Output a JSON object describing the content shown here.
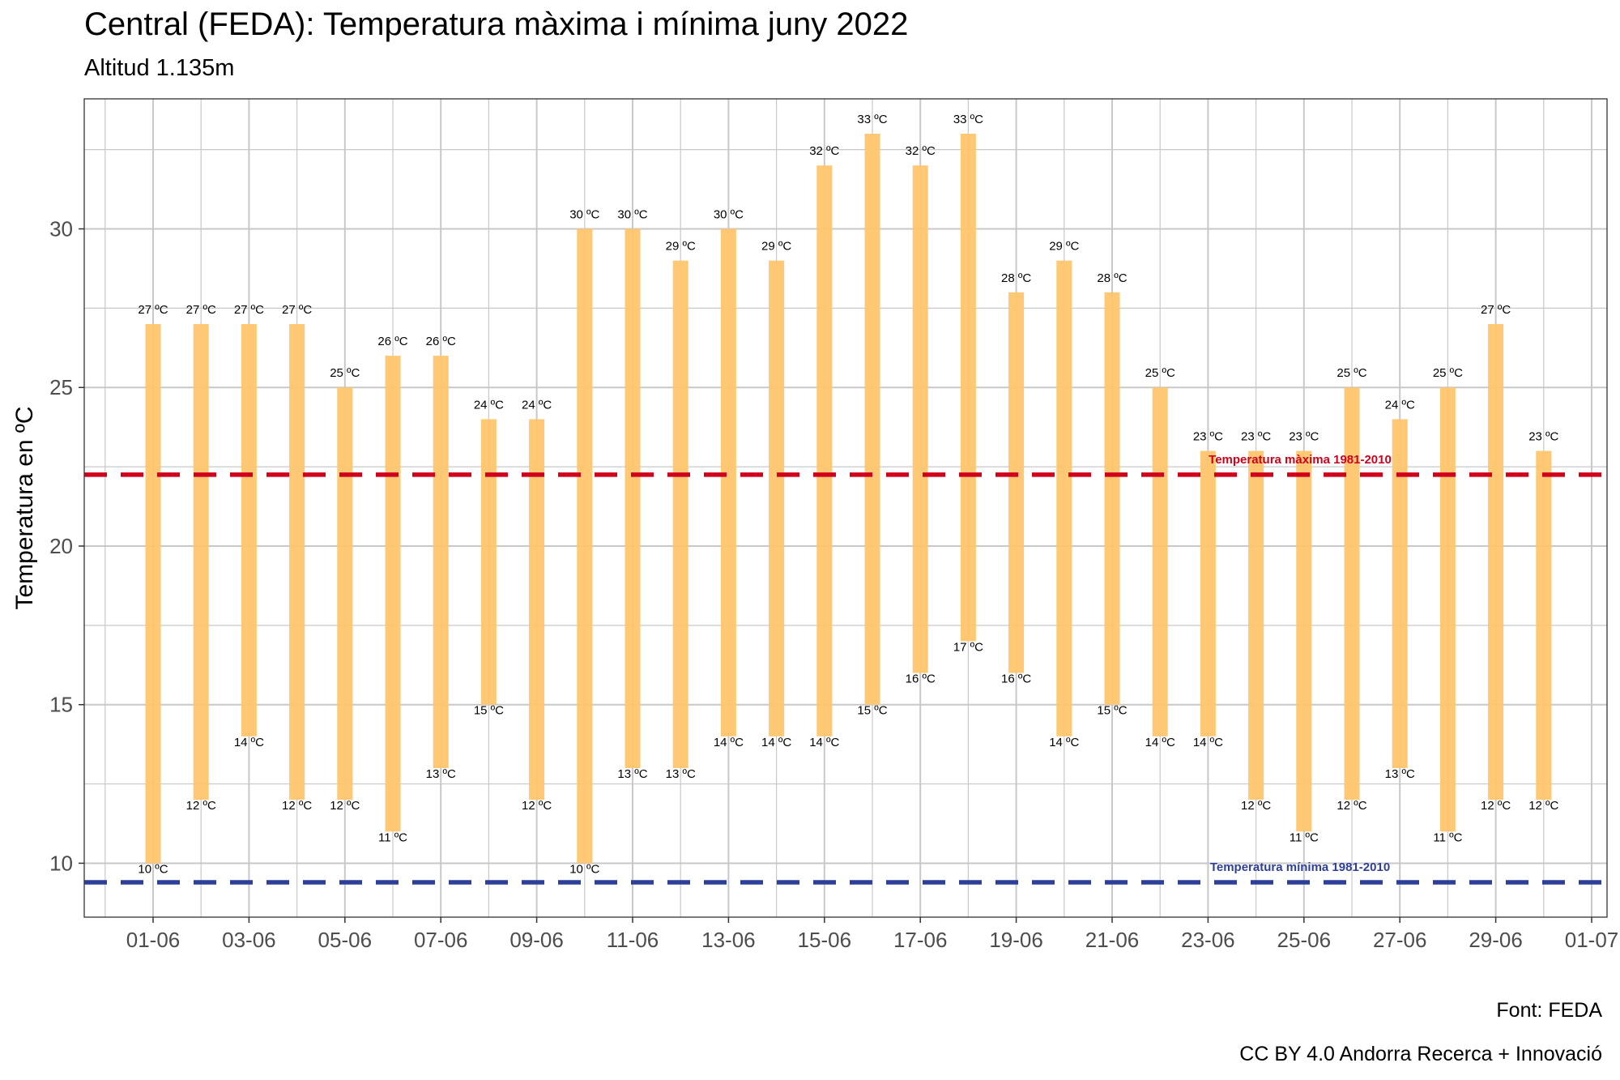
{
  "title": "Central (FEDA): Temperatura màxima i mínima juny 2022",
  "subtitle": "Altitud 1.135m",
  "caption_source": "Font: FEDA",
  "caption_license": "CC BY 4.0 Andorra Recerca + Innovació",
  "colors": {
    "bar": "#FFC56E",
    "max_ref": "#D0021B",
    "min_ref": "#2E3F9A",
    "grid": "#c8c8c8"
  },
  "chart_data": {
    "type": "bar",
    "subtype": "floating-range",
    "title": "Central (FEDA): Temperatura màxima i mínima juny 2022",
    "subtitle": "Altitud 1.135m",
    "xlabel": "",
    "ylabel": "Temperatura en ºC",
    "unit": "ºC",
    "label_suffix": " ºC",
    "x_ticks": [
      "01-06",
      "03-06",
      "05-06",
      "07-06",
      "09-06",
      "11-06",
      "13-06",
      "15-06",
      "17-06",
      "19-06",
      "21-06",
      "23-06",
      "25-06",
      "27-06",
      "29-06",
      "01-07"
    ],
    "y_ticks": [
      10,
      15,
      20,
      25,
      30
    ],
    "xlim": [
      "2022-05-31",
      "2022-07-01"
    ],
    "ylim": [
      8.3,
      34.1
    ],
    "grid": true,
    "categories": [
      "01-06",
      "02-06",
      "03-06",
      "04-06",
      "05-06",
      "06-06",
      "07-06",
      "08-06",
      "09-06",
      "10-06",
      "11-06",
      "12-06",
      "13-06",
      "14-06",
      "15-06",
      "16-06",
      "17-06",
      "18-06",
      "19-06",
      "20-06",
      "21-06",
      "22-06",
      "23-06",
      "24-06",
      "25-06",
      "26-06",
      "27-06",
      "28-06",
      "29-06",
      "30-06"
    ],
    "max": [
      27,
      27,
      27,
      27,
      25,
      26,
      26,
      24,
      24,
      30,
      30,
      29,
      30,
      29,
      32,
      33,
      32,
      33,
      28,
      29,
      28,
      25,
      23,
      23,
      23,
      25,
      24,
      25,
      27,
      23
    ],
    "min": [
      10,
      12,
      14,
      12,
      12,
      11,
      13,
      15,
      12,
      10,
      13,
      13,
      14,
      14,
      14,
      15,
      16,
      17,
      16,
      14,
      15,
      14,
      14,
      12,
      11,
      12,
      13,
      11,
      12,
      12
    ],
    "reference_lines": [
      {
        "label": "Temperatura màxima 1981-2010",
        "value": 22.25,
        "color": "#D0021B"
      },
      {
        "label": "Temperatura mínima 1981-2010",
        "value": 9.4,
        "color": "#2E3F9A"
      }
    ]
  }
}
